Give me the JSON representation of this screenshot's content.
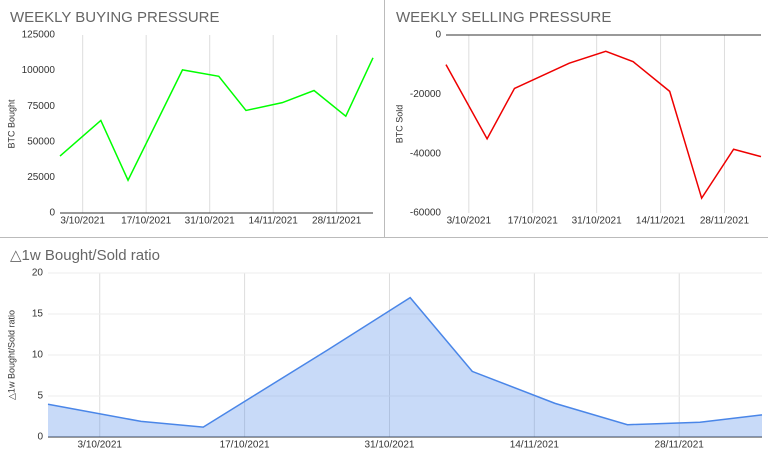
{
  "chart_data": [
    {
      "type": "line",
      "title": "WEEKLY BUYING PRESSURE",
      "y_label": "BTC Bought",
      "x": [
        "28/9/2021",
        "7/10/2021",
        "13/10/2021",
        "25/10/2021",
        "2/11/2021",
        "8/11/2021",
        "16/11/2021",
        "23/11/2021",
        "30/11/2021",
        "6/12/2021"
      ],
      "xlim": [
        "28/9/2021",
        "6/12/2021"
      ],
      "xticks": [
        "3/10/2021",
        "17/10/2021",
        "31/10/2021",
        "14/11/2021",
        "28/11/2021"
      ],
      "ylim": [
        0,
        125000
      ],
      "yticks": [
        0,
        25000,
        50000,
        75000,
        100000,
        125000
      ],
      "series": [
        {
          "color": "#00ff00",
          "values": [
            40000,
            65000,
            23000,
            100500,
            96000,
            72000,
            77500,
            86000,
            68000,
            109000
          ]
        }
      ]
    },
    {
      "type": "line",
      "title": "WEEKLY SELLING PRESSURE",
      "y_label": "BTC Sold",
      "x": [
        "28/9/2021",
        "7/10/2021",
        "13/10/2021",
        "25/10/2021",
        "2/11/2021",
        "8/11/2021",
        "16/11/2021",
        "23/11/2021",
        "30/11/2021",
        "6/12/2021"
      ],
      "xlim": [
        "28/9/2021",
        "6/12/2021"
      ],
      "xticks": [
        "3/10/2021",
        "17/10/2021",
        "31/10/2021",
        "14/11/2021",
        "28/11/2021"
      ],
      "ylim": [
        -60000,
        0
      ],
      "yticks": [
        0,
        -20000,
        -40000,
        -60000
      ],
      "series": [
        {
          "color": "#ee0000",
          "values": [
            -10000,
            -35000,
            -18000,
            -9500,
            -5500,
            -9000,
            -19000,
            -55000,
            -38500,
            -41000
          ]
        }
      ]
    },
    {
      "type": "area",
      "title": "△1w Bought/Sold ratio",
      "y_label": "△1w Bought/Sold ratio",
      "x": [
        "28/9/2021",
        "7/10/2021",
        "13/10/2021",
        "25/10/2021",
        "2/11/2021",
        "8/11/2021",
        "16/11/2021",
        "23/11/2021",
        "30/11/2021",
        "6/12/2021"
      ],
      "xlim": [
        "28/9/2021",
        "6/12/2021"
      ],
      "xticks": [
        "3/10/2021",
        "17/10/2021",
        "31/10/2021",
        "14/11/2021",
        "28/11/2021"
      ],
      "ylim": [
        0,
        20
      ],
      "yticks": [
        0,
        5,
        10,
        15,
        20
      ],
      "series": [
        {
          "color": "#4a86e8",
          "values": [
            4.0,
            1.9,
            1.2,
            10.6,
            17,
            8,
            4.1,
            1.5,
            1.8,
            2.7
          ]
        }
      ]
    }
  ]
}
